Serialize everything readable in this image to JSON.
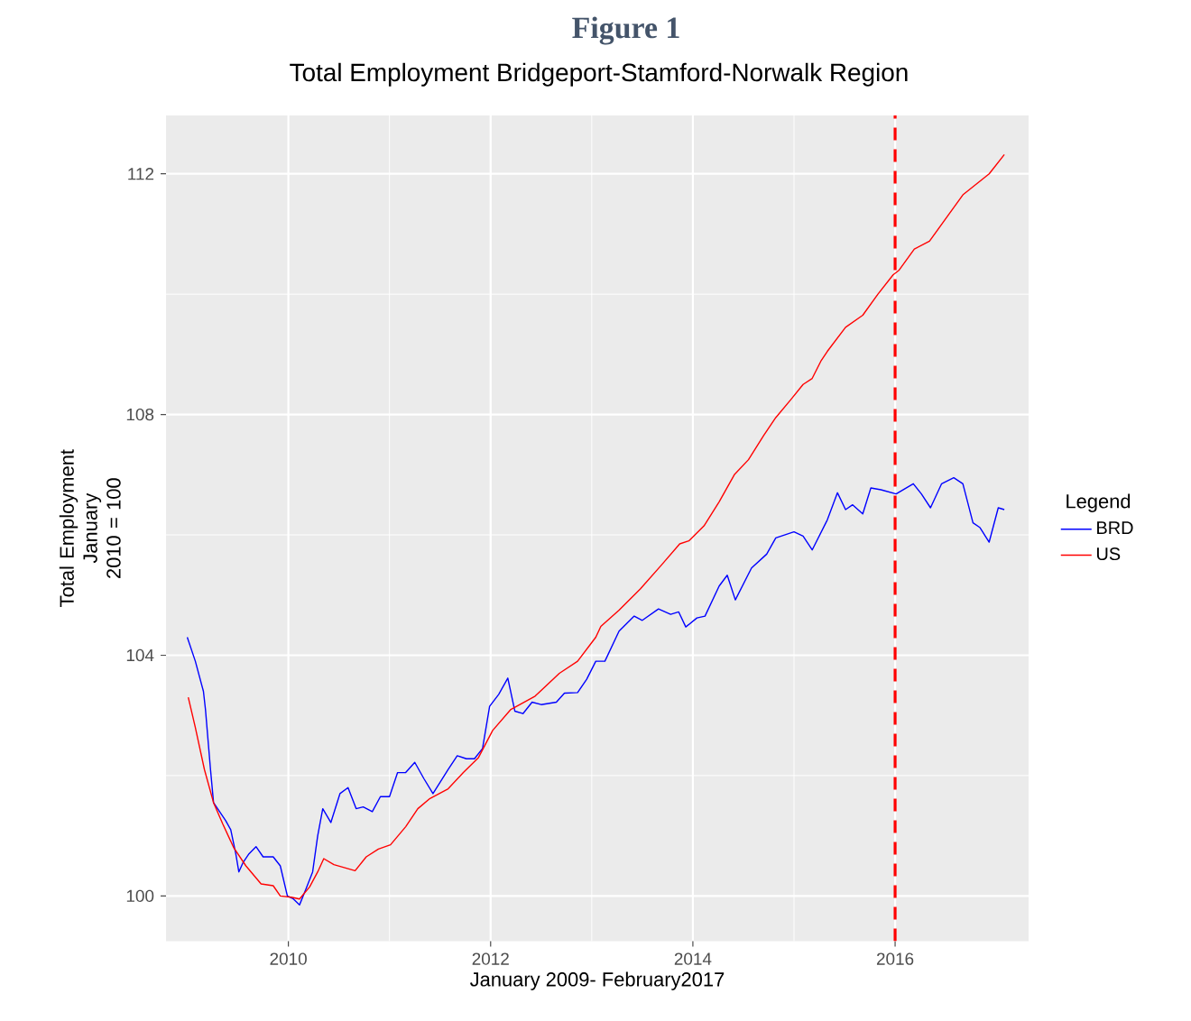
{
  "chart_data": {
    "type": "line",
    "title": "Figure 1",
    "subtitle": "Total Employment Bridgeport-Stamford-Norwalk Region",
    "xlabel": "January 2009- February2017",
    "ylabel": "Total Employment January 2010 = 100",
    "legend_title": "Legend",
    "xlim": [
      2008.79,
      2017.32
    ],
    "ylim": [
      99.25,
      112.97
    ],
    "xticks": [
      2010,
      2012,
      2014,
      2016
    ],
    "yticks": [
      100,
      104,
      108,
      112
    ],
    "grid": true,
    "legend": "right",
    "line_style": "solid",
    "ref_lines": [
      {
        "axis": "x",
        "value": 2016,
        "color": "#ff0000",
        "line_style": "dashed"
      }
    ],
    "series": [
      {
        "name": "BRD",
        "color": "#0000ff",
        "x": [
          2009.0,
          2009.08,
          2009.16,
          2009.18,
          2009.23,
          2009.26,
          2009.32,
          2009.38,
          2009.43,
          2009.48,
          2009.51,
          2009.55,
          2009.61,
          2009.68,
          2009.75,
          2009.85,
          2009.92,
          2009.99,
          2010.05,
          2010.11,
          2010.17,
          2010.24,
          2010.29,
          2010.34,
          2010.42,
          2010.51,
          2010.59,
          2010.67,
          2010.74,
          2010.83,
          2010.91,
          2011.0,
          2011.08,
          2011.16,
          2011.25,
          2011.34,
          2011.43,
          2011.58,
          2011.67,
          2011.76,
          2011.84,
          2011.92,
          2011.99,
          2012.08,
          2012.17,
          2012.24,
          2012.32,
          2012.41,
          2012.5,
          2012.65,
          2012.73,
          2012.86,
          2012.95,
          2013.04,
          2013.13,
          2013.27,
          2013.42,
          2013.5,
          2013.66,
          2013.78,
          2013.86,
          2013.93,
          2014.04,
          2014.12,
          2014.26,
          2014.34,
          2014.42,
          2014.58,
          2014.73,
          2014.82,
          2015.0,
          2015.09,
          2015.18,
          2015.33,
          2015.43,
          2015.51,
          2015.58,
          2015.68,
          2015.76,
          2015.86,
          2016.01,
          2016.18,
          2016.26,
          2016.35,
          2016.46,
          2016.58,
          2016.67,
          2016.77,
          2016.84,
          2016.93,
          2017.02,
          2017.08
        ],
        "values": [
          104.3,
          103.9,
          103.4,
          103.1,
          102.1,
          101.55,
          101.4,
          101.25,
          101.1,
          100.7,
          100.4,
          100.55,
          100.7,
          100.82,
          100.65,
          100.65,
          100.5,
          100.0,
          99.95,
          99.85,
          100.1,
          100.4,
          101.0,
          101.45,
          101.22,
          101.7,
          101.8,
          101.45,
          101.48,
          101.4,
          101.65,
          101.65,
          102.05,
          102.05,
          102.22,
          101.95,
          101.7,
          102.1,
          102.33,
          102.28,
          102.28,
          102.45,
          103.15,
          103.35,
          103.62,
          103.07,
          103.03,
          103.22,
          103.18,
          103.22,
          103.37,
          103.38,
          103.6,
          103.9,
          103.9,
          104.4,
          104.65,
          104.58,
          104.77,
          104.68,
          104.72,
          104.47,
          104.62,
          104.65,
          105.15,
          105.33,
          104.92,
          105.45,
          105.68,
          105.95,
          106.05,
          105.98,
          105.75,
          106.25,
          106.7,
          106.42,
          106.5,
          106.35,
          106.78,
          106.75,
          106.68,
          106.85,
          106.68,
          106.45,
          106.85,
          106.95,
          106.85,
          106.2,
          106.12,
          105.88,
          106.45,
          106.42
        ]
      },
      {
        "name": "US",
        "color": "#ff0000",
        "x": [
          2009.01,
          2009.08,
          2009.17,
          2009.26,
          2009.35,
          2009.46,
          2009.58,
          2009.73,
          2009.85,
          2009.92,
          2010.03,
          2010.11,
          2010.21,
          2010.29,
          2010.35,
          2010.45,
          2010.66,
          2010.77,
          2010.89,
          2011.01,
          2011.16,
          2011.28,
          2011.4,
          2011.58,
          2011.73,
          2011.88,
          2012.02,
          2012.2,
          2012.44,
          2012.68,
          2012.86,
          2013.04,
          2013.09,
          2013.27,
          2013.48,
          2013.69,
          2013.87,
          2013.96,
          2014.11,
          2014.26,
          2014.41,
          2014.55,
          2014.7,
          2014.82,
          2014.97,
          2015.09,
          2015.18,
          2015.27,
          2015.33,
          2015.51,
          2015.68,
          2015.83,
          2015.98,
          2016.04,
          2016.19,
          2016.34,
          2016.52,
          2016.67,
          2016.93,
          2017.08
        ],
        "values": [
          103.3,
          102.8,
          102.1,
          101.55,
          101.2,
          100.8,
          100.5,
          100.2,
          100.17,
          100.0,
          99.98,
          99.95,
          100.15,
          100.4,
          100.62,
          100.52,
          100.42,
          100.65,
          100.78,
          100.85,
          101.15,
          101.45,
          101.62,
          101.78,
          102.05,
          102.3,
          102.75,
          103.1,
          103.32,
          103.7,
          103.9,
          104.3,
          104.48,
          104.75,
          105.1,
          105.5,
          105.85,
          105.9,
          106.15,
          106.55,
          107.0,
          107.25,
          107.65,
          107.95,
          108.25,
          108.5,
          108.6,
          108.9,
          109.05,
          109.45,
          109.65,
          110.0,
          110.32,
          110.4,
          110.75,
          110.88,
          111.3,
          111.65,
          112.0,
          112.32
        ]
      }
    ]
  }
}
